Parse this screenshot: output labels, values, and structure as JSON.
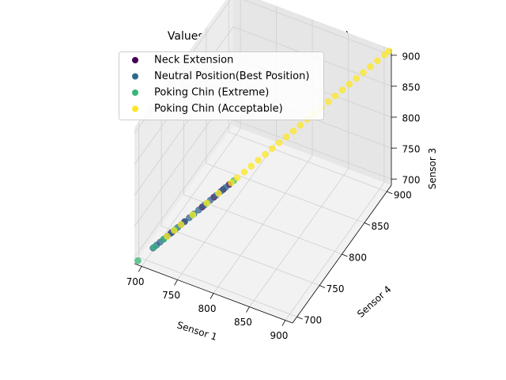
{
  "chart_data": {
    "type": "scatter",
    "projection": "3d",
    "title": "Values Clustering (Head Posture)",
    "xlabel": "Sensor 1",
    "ylabel": "Sensor 4",
    "zlabel": "Sensor 3",
    "xlim": [
      690,
      910
    ],
    "ylim": [
      690,
      910
    ],
    "zlim": [
      690,
      910
    ],
    "xticks": [
      "700",
      "750",
      "800",
      "850",
      "900"
    ],
    "yticks": [
      "700",
      "750",
      "800",
      "850",
      "900"
    ],
    "zticks": [
      "700",
      "750",
      "800",
      "850",
      "900"
    ],
    "grid": true,
    "legend_position": "upper-left",
    "series": [
      {
        "name": "Neck Extension",
        "color": "#440154",
        "points": [
          [
            722,
            722,
            722
          ],
          [
            733,
            733,
            733
          ],
          [
            748,
            748,
            748
          ],
          [
            758,
            758,
            758
          ],
          [
            766,
            766,
            766
          ],
          [
            771,
            771,
            771
          ]
        ]
      },
      {
        "name": "Neutral Position(Best Position)",
        "color": "#31688e",
        "points": [
          [
            706,
            706,
            706
          ],
          [
            709,
            709,
            709
          ],
          [
            712,
            712,
            712
          ],
          [
            715,
            715,
            715
          ],
          [
            718,
            718,
            718
          ],
          [
            721,
            721,
            721
          ],
          [
            724,
            724,
            724
          ],
          [
            727,
            727,
            727
          ],
          [
            730,
            730,
            730
          ],
          [
            733,
            733,
            733
          ],
          [
            737,
            737,
            737
          ],
          [
            741,
            741,
            741
          ],
          [
            745,
            745,
            745
          ],
          [
            750,
            750,
            750
          ],
          [
            755,
            755,
            755
          ],
          [
            760,
            760,
            760
          ],
          [
            764,
            764,
            764
          ],
          [
            768,
            768,
            768
          ]
        ]
      },
      {
        "name": "Poking Chin (Extreme)",
        "color": "#35b779",
        "points": [
          [
            693,
            693,
            693
          ],
          [
            707,
            707,
            707
          ],
          [
            715,
            715,
            715
          ],
          [
            725,
            725,
            725
          ],
          [
            740,
            740,
            740
          ],
          [
            752,
            752,
            752
          ],
          [
            775,
            775,
            775
          ]
        ]
      },
      {
        "name": "Poking Chin (Acceptable)",
        "color": "#fde725",
        "points": [
          [
            718,
            718,
            718
          ],
          [
            724,
            724,
            724
          ],
          [
            730,
            730,
            730
          ],
          [
            740,
            740,
            740
          ],
          [
            752,
            752,
            752
          ],
          [
            762,
            762,
            762
          ],
          [
            773,
            773,
            773
          ],
          [
            778,
            778,
            778
          ],
          [
            784,
            784,
            784
          ],
          [
            790,
            790,
            790
          ],
          [
            796,
            796,
            796
          ],
          [
            802,
            802,
            802
          ],
          [
            808,
            808,
            808
          ],
          [
            814,
            814,
            814
          ],
          [
            820,
            820,
            820
          ],
          [
            826,
            826,
            826
          ],
          [
            832,
            832,
            832
          ],
          [
            838,
            838,
            838
          ],
          [
            844,
            844,
            844
          ],
          [
            850,
            850,
            850
          ],
          [
            856,
            856,
            856
          ],
          [
            862,
            862,
            862
          ],
          [
            868,
            868,
            868
          ],
          [
            874,
            874,
            874
          ],
          [
            880,
            880,
            880
          ],
          [
            886,
            886,
            886
          ],
          [
            892,
            892,
            892
          ],
          [
            898,
            898,
            898
          ],
          [
            904,
            904,
            904
          ],
          [
            908,
            908,
            908
          ]
        ]
      }
    ]
  }
}
